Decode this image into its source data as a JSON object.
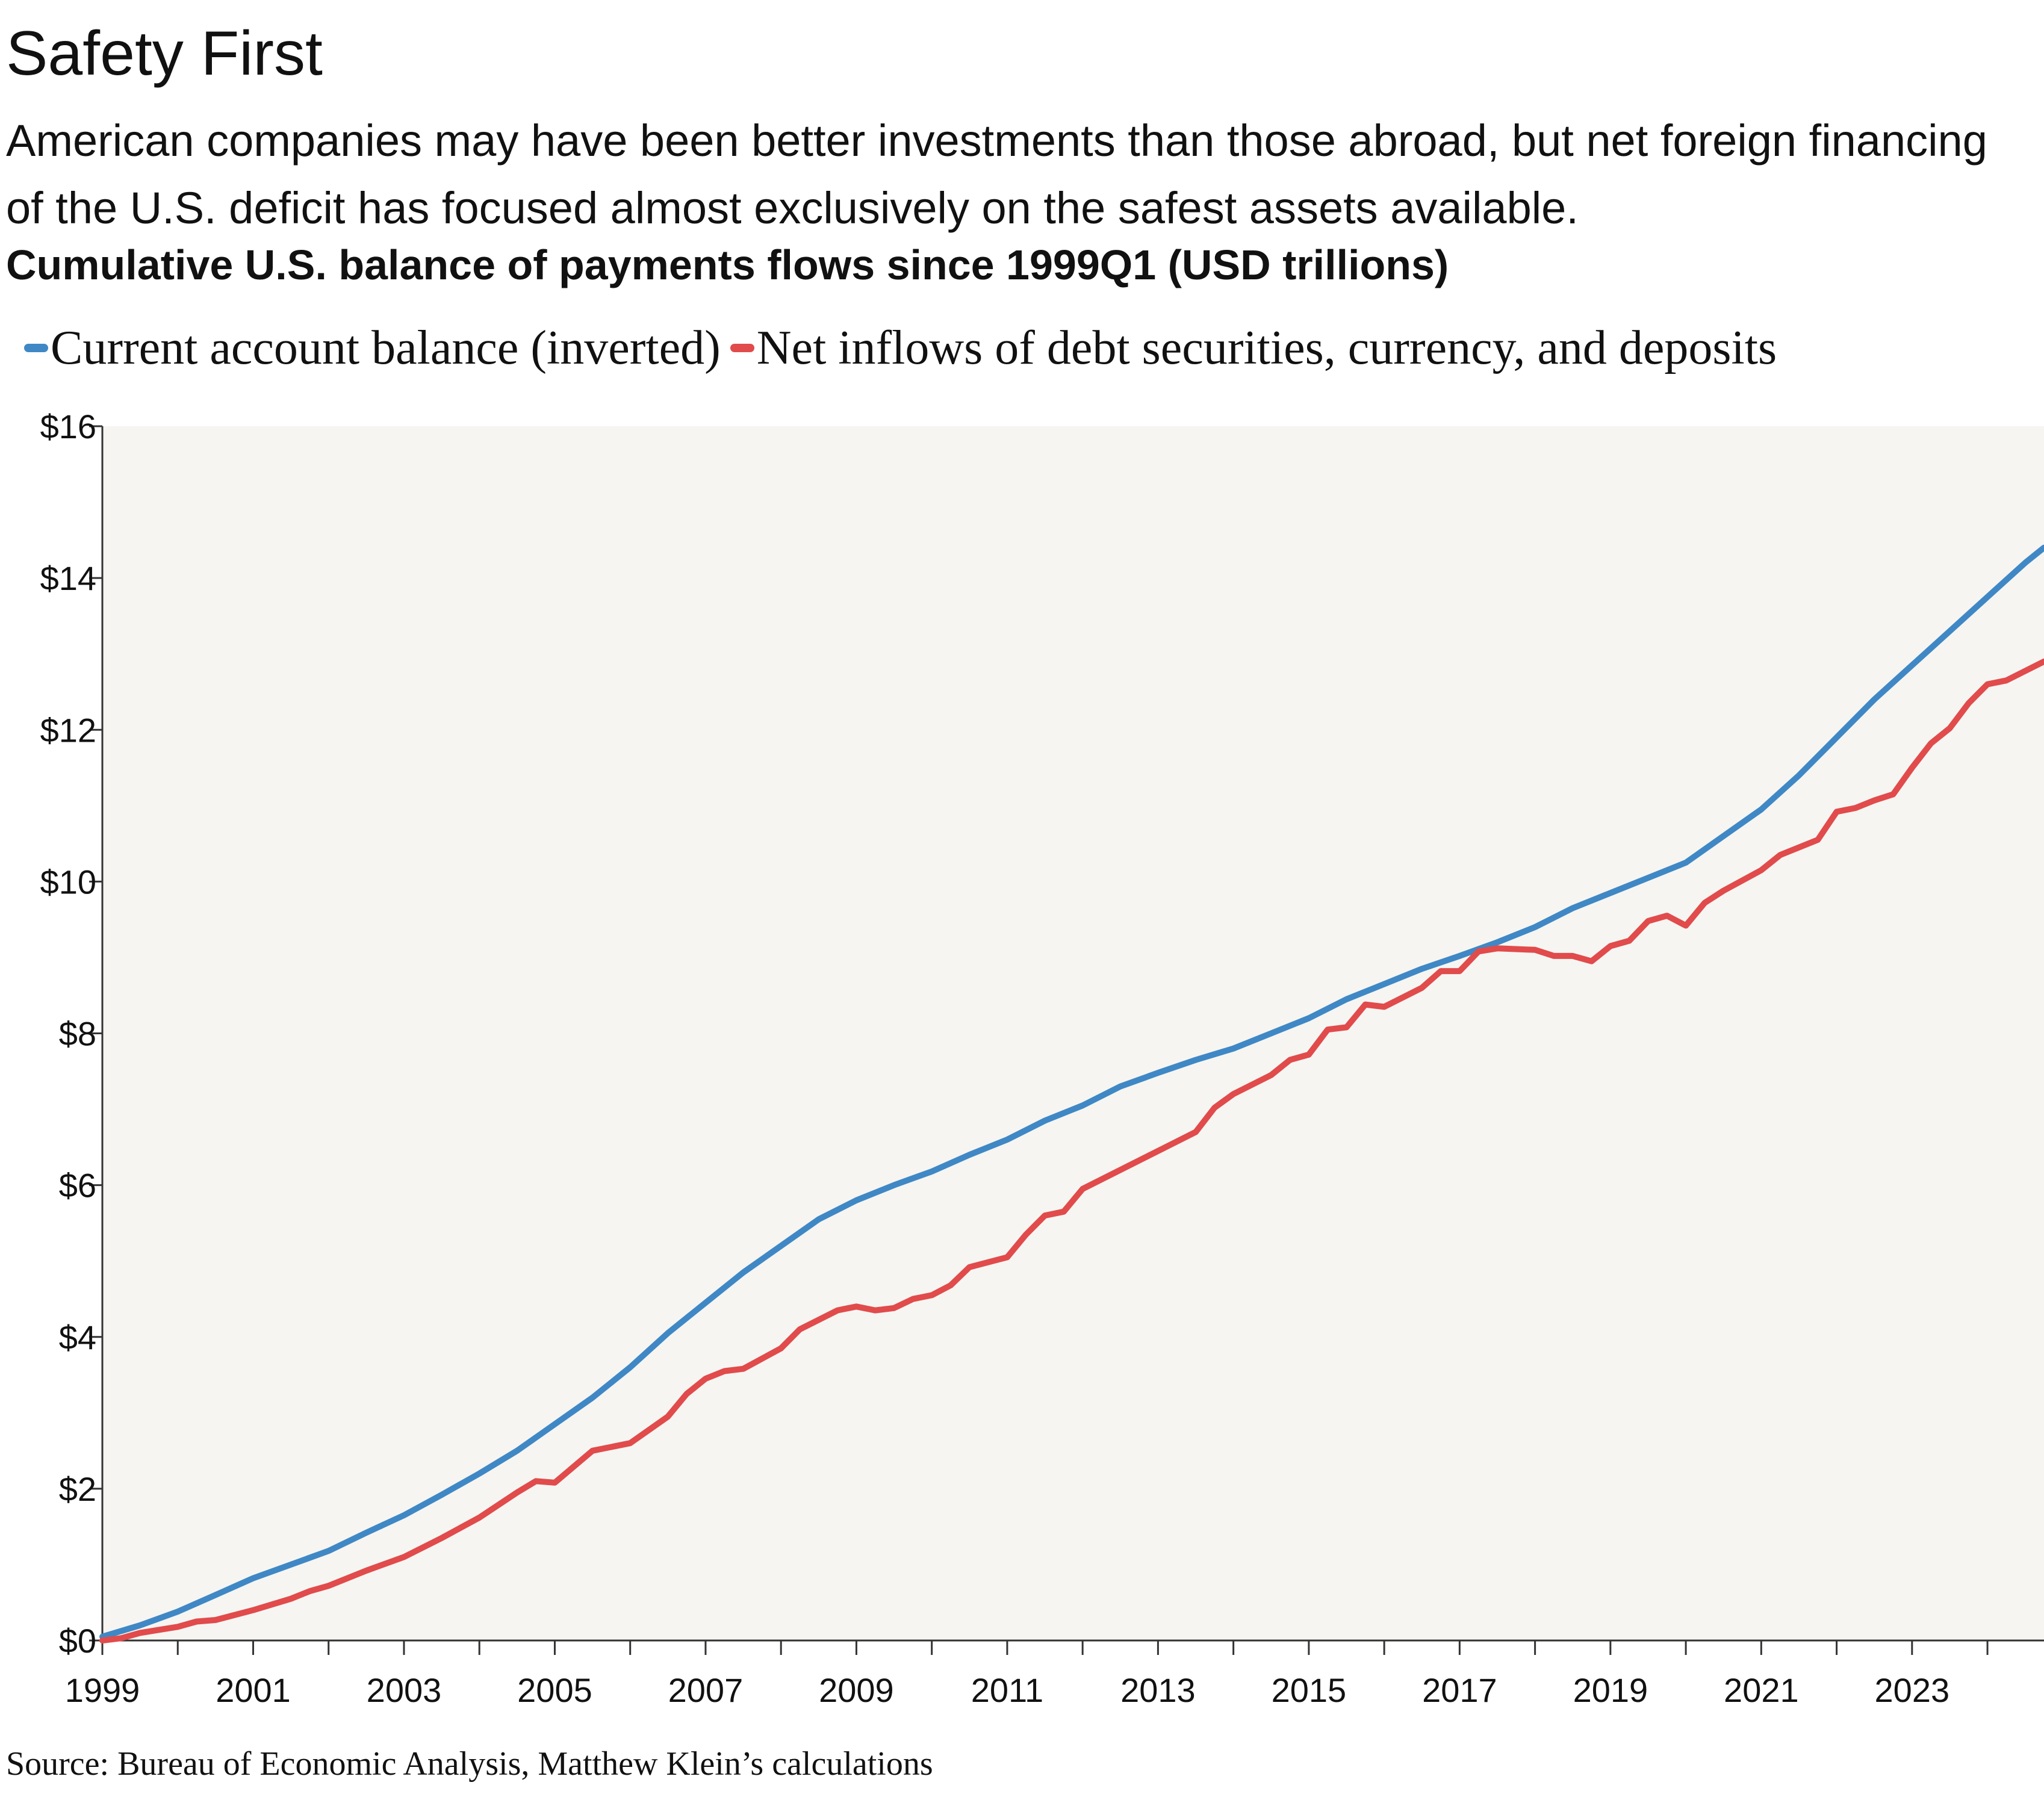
{
  "header": {
    "title": "Safety First",
    "subtitle": "American companies may have been better investments than those abroad, but net foreign financing of the U.S. deficit has focused almost exclusively on the safest assets available.",
    "chart_title": "Cumulative U.S. balance of payments flows since 1999Q1 (USD trillions)"
  },
  "source": "Source: Bureau of Economic Analysis, Matthew Klein’s calculations",
  "chart_data": {
    "type": "line",
    "title": "Cumulative U.S. balance of payments flows since 1999Q1 (USD trillions)",
    "xlabel": "",
    "ylabel": "",
    "xlim": [
      1999,
      2024.75
    ],
    "ylim": [
      0,
      16
    ],
    "x_ticks": [
      "1999",
      "2001",
      "2003",
      "2005",
      "2007",
      "2009",
      "2011",
      "2013",
      "2015",
      "2017",
      "2019",
      "2021",
      "2023"
    ],
    "y_ticks": [
      "$0",
      "$2",
      "$4",
      "$6",
      "$8",
      "$10",
      "$12",
      "$14",
      "$16"
    ],
    "grid": false,
    "legend_position": "top-left",
    "background": "#f6f5f2",
    "series": [
      {
        "name": "Current account balance (inverted)",
        "color": "#3f88c5",
        "points": [
          [
            1999,
            0.05
          ],
          [
            1999.5,
            0.2
          ],
          [
            2000,
            0.38
          ],
          [
            2000.5,
            0.6
          ],
          [
            2001,
            0.82
          ],
          [
            2001.5,
            1.0
          ],
          [
            2002,
            1.18
          ],
          [
            2002.5,
            1.42
          ],
          [
            2003,
            1.65
          ],
          [
            2003.5,
            1.92
          ],
          [
            2004,
            2.2
          ],
          [
            2004.5,
            2.5
          ],
          [
            2005,
            2.85
          ],
          [
            2005.5,
            3.2
          ],
          [
            2006,
            3.6
          ],
          [
            2006.5,
            4.05
          ],
          [
            2007,
            4.45
          ],
          [
            2007.5,
            4.85
          ],
          [
            2008,
            5.2
          ],
          [
            2008.5,
            5.55
          ],
          [
            2009,
            5.8
          ],
          [
            2009.5,
            6.0
          ],
          [
            2010,
            6.18
          ],
          [
            2010.5,
            6.4
          ],
          [
            2011,
            6.6
          ],
          [
            2011.5,
            6.85
          ],
          [
            2012,
            7.05
          ],
          [
            2012.5,
            7.3
          ],
          [
            2013,
            7.48
          ],
          [
            2013.5,
            7.65
          ],
          [
            2014,
            7.8
          ],
          [
            2014.5,
            8.0
          ],
          [
            2015,
            8.2
          ],
          [
            2015.5,
            8.45
          ],
          [
            2016,
            8.65
          ],
          [
            2016.5,
            8.85
          ],
          [
            2017,
            9.02
          ],
          [
            2017.5,
            9.2
          ],
          [
            2018,
            9.4
          ],
          [
            2018.5,
            9.65
          ],
          [
            2019,
            9.85
          ],
          [
            2019.5,
            10.05
          ],
          [
            2020,
            10.25
          ],
          [
            2020.5,
            10.6
          ],
          [
            2021,
            10.95
          ],
          [
            2021.5,
            11.4
          ],
          [
            2022,
            11.9
          ],
          [
            2022.5,
            12.4
          ],
          [
            2023,
            12.85
          ],
          [
            2023.5,
            13.3
          ],
          [
            2024,
            13.75
          ],
          [
            2024.5,
            14.2
          ],
          [
            2024.75,
            14.4
          ]
        ]
      },
      {
        "name": "Net inflows of debt securities, currency, and deposits",
        "color": "#e14b4b",
        "points": [
          [
            1999,
            0.0
          ],
          [
            1999.25,
            0.03
          ],
          [
            1999.5,
            0.1
          ],
          [
            2000,
            0.18
          ],
          [
            2000.25,
            0.25
          ],
          [
            2000.5,
            0.27
          ],
          [
            2001,
            0.4
          ],
          [
            2001.5,
            0.55
          ],
          [
            2001.75,
            0.65
          ],
          [
            2002,
            0.72
          ],
          [
            2002.5,
            0.92
          ],
          [
            2003,
            1.1
          ],
          [
            2003.5,
            1.35
          ],
          [
            2004,
            1.62
          ],
          [
            2004.5,
            1.95
          ],
          [
            2004.75,
            2.1
          ],
          [
            2005,
            2.08
          ],
          [
            2005.5,
            2.5
          ],
          [
            2006,
            2.6
          ],
          [
            2006.5,
            2.95
          ],
          [
            2006.75,
            3.25
          ],
          [
            2007,
            3.45
          ],
          [
            2007.25,
            3.55
          ],
          [
            2007.5,
            3.58
          ],
          [
            2008,
            3.85
          ],
          [
            2008.25,
            4.1
          ],
          [
            2008.75,
            4.35
          ],
          [
            2009,
            4.4
          ],
          [
            2009.25,
            4.35
          ],
          [
            2009.5,
            4.38
          ],
          [
            2009.75,
            4.5
          ],
          [
            2010,
            4.55
          ],
          [
            2010.25,
            4.68
          ],
          [
            2010.5,
            4.92
          ],
          [
            2011,
            5.05
          ],
          [
            2011.25,
            5.35
          ],
          [
            2011.5,
            5.6
          ],
          [
            2011.75,
            5.65
          ],
          [
            2012,
            5.95
          ],
          [
            2012.5,
            6.2
          ],
          [
            2013,
            6.45
          ],
          [
            2013.5,
            6.7
          ],
          [
            2013.75,
            7.02
          ],
          [
            2014,
            7.2
          ],
          [
            2014.5,
            7.45
          ],
          [
            2014.75,
            7.65
          ],
          [
            2015,
            7.72
          ],
          [
            2015.25,
            8.05
          ],
          [
            2015.5,
            8.08
          ],
          [
            2015.75,
            8.38
          ],
          [
            2016,
            8.35
          ],
          [
            2016.5,
            8.6
          ],
          [
            2016.75,
            8.82
          ],
          [
            2017,
            8.82
          ],
          [
            2017.25,
            9.08
          ],
          [
            2017.5,
            9.12
          ],
          [
            2018,
            9.1
          ],
          [
            2018.25,
            9.02
          ],
          [
            2018.5,
            9.02
          ],
          [
            2018.75,
            8.95
          ],
          [
            2019,
            9.15
          ],
          [
            2019.25,
            9.22
          ],
          [
            2019.5,
            9.48
          ],
          [
            2019.75,
            9.55
          ],
          [
            2020,
            9.42
          ],
          [
            2020.25,
            9.72
          ],
          [
            2020.5,
            9.88
          ],
          [
            2021,
            10.15
          ],
          [
            2021.25,
            10.35
          ],
          [
            2021.5,
            10.45
          ],
          [
            2021.75,
            10.55
          ],
          [
            2022,
            10.92
          ],
          [
            2022.25,
            10.97
          ],
          [
            2022.5,
            11.07
          ],
          [
            2022.75,
            11.15
          ],
          [
            2023,
            11.5
          ],
          [
            2023.25,
            11.82
          ],
          [
            2023.5,
            12.02
          ],
          [
            2023.75,
            12.35
          ],
          [
            2024,
            12.6
          ],
          [
            2024.25,
            12.65
          ],
          [
            2024.75,
            12.9
          ]
        ]
      }
    ]
  }
}
